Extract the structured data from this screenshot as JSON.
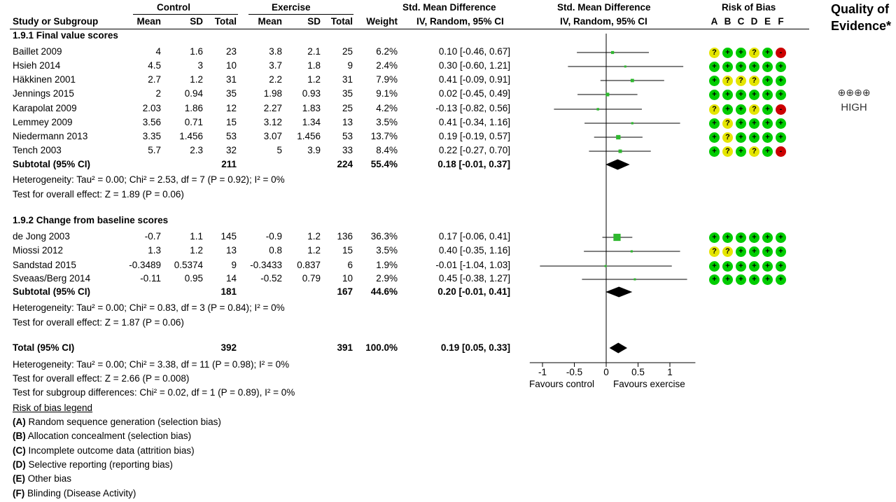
{
  "header": {
    "control": "Control",
    "exercise": "Exercise",
    "smd": "Std. Mean Difference",
    "smd_method": "IV, Random, 95% CI",
    "smd_plot": "Std. Mean Difference",
    "smd_plot_method": "IV, Random, 95% CI",
    "rob": "Risk of Bias",
    "rob_letters": [
      "A",
      "B",
      "C",
      "D",
      "E",
      "F"
    ],
    "quality_line1": "Quality of",
    "quality_line2": "Evidence*",
    "cols": {
      "study": "Study or Subgroup",
      "mean_c": "Mean",
      "sd_c": "SD",
      "total_c": "Total",
      "mean_e": "Mean",
      "sd_e": "SD",
      "total_e": "Total",
      "weight": "Weight"
    }
  },
  "quality": {
    "symbols": "⊕⊕⊕⊕",
    "label": "HIGH"
  },
  "groups": [
    {
      "title": "1.9.1 Final value scores",
      "studies": [
        {
          "name": "Baillet 2009",
          "mean_c": "4",
          "sd_c": "1.6",
          "total_c": "23",
          "mean_e": "3.8",
          "sd_e": "2.1",
          "total_e": "25",
          "weight": "6.2%",
          "ci": "0.10 [-0.46, 0.67]",
          "rob": [
            "?",
            "+",
            "+",
            "?",
            "+",
            "-"
          ]
        },
        {
          "name": "Hsieh 2014",
          "mean_c": "4.5",
          "sd_c": "3",
          "total_c": "10",
          "mean_e": "3.7",
          "sd_e": "1.8",
          "total_e": "9",
          "weight": "2.4%",
          "ci": "0.30 [-0.60, 1.21]",
          "rob": [
            "+",
            "+",
            "+",
            "+",
            "+",
            "+"
          ]
        },
        {
          "name": "Häkkinen 2001",
          "mean_c": "2.7",
          "sd_c": "1.2",
          "total_c": "31",
          "mean_e": "2.2",
          "sd_e": "1.2",
          "total_e": "31",
          "weight": "7.9%",
          "ci": "0.41 [-0.09, 0.91]",
          "rob": [
            "+",
            "?",
            "?",
            "?",
            "+",
            "+"
          ]
        },
        {
          "name": "Jennings 2015",
          "mean_c": "2",
          "sd_c": "0.94",
          "total_c": "35",
          "mean_e": "1.98",
          "sd_e": "0.93",
          "total_e": "35",
          "weight": "9.1%",
          "ci": "0.02 [-0.45, 0.49]",
          "rob": [
            "+",
            "+",
            "+",
            "+",
            "+",
            "+"
          ]
        },
        {
          "name": "Karapolat 2009",
          "mean_c": "2.03",
          "sd_c": "1.86",
          "total_c": "12",
          "mean_e": "2.27",
          "sd_e": "1.83",
          "total_e": "25",
          "weight": "4.2%",
          "ci": "-0.13 [-0.82, 0.56]",
          "rob": [
            "?",
            "+",
            "+",
            "?",
            "+",
            "-"
          ]
        },
        {
          "name": "Lemmey 2009",
          "mean_c": "3.56",
          "sd_c": "0.71",
          "total_c": "15",
          "mean_e": "3.12",
          "sd_e": "1.34",
          "total_e": "13",
          "weight": "3.5%",
          "ci": "0.41 [-0.34, 1.16]",
          "rob": [
            "+",
            "?",
            "+",
            "+",
            "+",
            "+"
          ]
        },
        {
          "name": "Niedermann 2013",
          "mean_c": "3.35",
          "sd_c": "1.456",
          "total_c": "53",
          "mean_e": "3.07",
          "sd_e": "1.456",
          "total_e": "53",
          "weight": "13.7%",
          "ci": "0.19 [-0.19, 0.57]",
          "rob": [
            "+",
            "?",
            "+",
            "+",
            "+",
            "+"
          ]
        },
        {
          "name": "Tench 2003",
          "mean_c": "5.7",
          "sd_c": "2.3",
          "total_c": "32",
          "mean_e": "5",
          "sd_e": "3.9",
          "total_e": "33",
          "weight": "8.4%",
          "ci": "0.22 [-0.27, 0.70]",
          "rob": [
            "+",
            "?",
            "+",
            "?",
            "+",
            "-"
          ]
        }
      ],
      "subtotal": {
        "label": "Subtotal (95% CI)",
        "total_c": "211",
        "total_e": "224",
        "weight": "55.4%",
        "ci": "0.18 [-0.01, 0.37]"
      },
      "heterogeneity": "Heterogeneity: Tau² = 0.00; Chi² = 2.53, df = 7 (P = 0.92); I² = 0%",
      "overall": "Test for overall effect: Z = 1.89 (P = 0.06)"
    },
    {
      "title": "1.9.2 Change from baseline scores",
      "studies": [
        {
          "name": "de Jong 2003",
          "mean_c": "-0.7",
          "sd_c": "1.1",
          "total_c": "145",
          "mean_e": "-0.9",
          "sd_e": "1.2",
          "total_e": "136",
          "weight": "36.3%",
          "ci": "0.17 [-0.06, 0.41]",
          "rob": [
            "+",
            "+",
            "+",
            "+",
            "+",
            "+"
          ]
        },
        {
          "name": "Miossi 2012",
          "mean_c": "1.3",
          "sd_c": "1.2",
          "total_c": "13",
          "mean_e": "0.8",
          "sd_e": "1.2",
          "total_e": "15",
          "weight": "3.5%",
          "ci": "0.40 [-0.35, 1.16]",
          "rob": [
            "?",
            "?",
            "+",
            "+",
            "+",
            "+"
          ]
        },
        {
          "name": "Sandstad 2015",
          "mean_c": "-0.3489",
          "sd_c": "0.5374",
          "total_c": "9",
          "mean_e": "-0.3433",
          "sd_e": "0.837",
          "total_e": "6",
          "weight": "1.9%",
          "ci": "-0.01 [-1.04, 1.03]",
          "rob": [
            "+",
            "+",
            "+",
            "+",
            "+",
            "+"
          ]
        },
        {
          "name": "Sveaas/Berg 2014",
          "mean_c": "-0.11",
          "sd_c": "0.95",
          "total_c": "14",
          "mean_e": "-0.52",
          "sd_e": "0.79",
          "total_e": "10",
          "weight": "2.9%",
          "ci": "0.45 [-0.38, 1.27]",
          "rob": [
            "+",
            "+",
            "+",
            "+",
            "+",
            "+"
          ]
        }
      ],
      "subtotal": {
        "label": "Subtotal (95% CI)",
        "total_c": "181",
        "total_e": "167",
        "weight": "44.6%",
        "ci": "0.20 [-0.01, 0.41]"
      },
      "heterogeneity": "Heterogeneity: Tau² = 0.00; Chi² = 0.83, df = 3 (P = 0.84); I² = 0%",
      "overall": "Test for overall effect: Z = 1.87 (P = 0.06)"
    }
  ],
  "total": {
    "label": "Total (95% CI)",
    "total_c": "392",
    "total_e": "391",
    "weight": "100.0%",
    "ci": "0.19 [0.05, 0.33]",
    "heterogeneity": "Heterogeneity: Tau² = 0.00; Chi² = 3.38, df = 11 (P = 0.98); I² = 0%",
    "overall": "Test for overall effect: Z = 2.66 (P = 0.008)",
    "subgroup": "Test for subgroup differences: Chi² = 0.02, df = 1 (P = 0.89), I² = 0%"
  },
  "rob_legend": {
    "title": "Risk of bias legend",
    "items": [
      {
        "key": "(A)",
        "text": " Random sequence generation (selection bias)"
      },
      {
        "key": "(B)",
        "text": " Allocation concealment (selection bias)"
      },
      {
        "key": "(C)",
        "text": " Incomplete outcome data (attrition bias)"
      },
      {
        "key": "(D)",
        "text": " Selective reporting (reporting bias)"
      },
      {
        "key": "(E)",
        "text": " Other bias"
      },
      {
        "key": "(F)",
        "text": " Blinding (Disease Activity)"
      }
    ]
  },
  "axis": {
    "favours_left": "Favours control",
    "favours_right": "Favours exercise"
  },
  "colors": {
    "low_risk": "#00cc00",
    "unclear_risk": "#e5e500",
    "high_risk": "#cc0000",
    "marker": "#2fb82f"
  },
  "chart_data": {
    "type": "forest",
    "x_range": [
      -1.2,
      1.4
    ],
    "ticks": [
      -1,
      -0.5,
      0,
      0.5,
      1
    ],
    "tick_labels": [
      "-1",
      "-0.5",
      "0",
      "0.5",
      "1"
    ],
    "studies": [
      {
        "name": "Baillet 2009",
        "est": 0.1,
        "lo": -0.46,
        "hi": 0.67,
        "weight": 6.2
      },
      {
        "name": "Hsieh 2014",
        "est": 0.3,
        "lo": -0.6,
        "hi": 1.21,
        "weight": 2.4
      },
      {
        "name": "Häkkinen 2001",
        "est": 0.41,
        "lo": -0.09,
        "hi": 0.91,
        "weight": 7.9
      },
      {
        "name": "Jennings 2015",
        "est": 0.02,
        "lo": -0.45,
        "hi": 0.49,
        "weight": 9.1
      },
      {
        "name": "Karapolat 2009",
        "est": -0.13,
        "lo": -0.82,
        "hi": 0.56,
        "weight": 4.2
      },
      {
        "name": "Lemmey 2009",
        "est": 0.41,
        "lo": -0.34,
        "hi": 1.16,
        "weight": 3.5
      },
      {
        "name": "Niedermann 2013",
        "est": 0.19,
        "lo": -0.19,
        "hi": 0.57,
        "weight": 13.7
      },
      {
        "name": "Tench 2003",
        "est": 0.22,
        "lo": -0.27,
        "hi": 0.7,
        "weight": 8.4
      },
      {
        "name": "de Jong 2003",
        "est": 0.17,
        "lo": -0.06,
        "hi": 0.41,
        "weight": 36.3
      },
      {
        "name": "Miossi 2012",
        "est": 0.4,
        "lo": -0.35,
        "hi": 1.16,
        "weight": 3.5
      },
      {
        "name": "Sandstad 2015",
        "est": -0.01,
        "lo": -1.04,
        "hi": 1.03,
        "weight": 1.9
      },
      {
        "name": "Sveaas/Berg 2014",
        "est": 0.45,
        "lo": -0.38,
        "hi": 1.27,
        "weight": 2.9
      }
    ],
    "diamonds": [
      {
        "name": "Subtotal 1.9.1",
        "est": 0.18,
        "lo": -0.01,
        "hi": 0.37
      },
      {
        "name": "Subtotal 1.9.2",
        "est": 0.2,
        "lo": -0.01,
        "hi": 0.41
      },
      {
        "name": "Total",
        "est": 0.19,
        "lo": 0.05,
        "hi": 0.33
      }
    ]
  }
}
